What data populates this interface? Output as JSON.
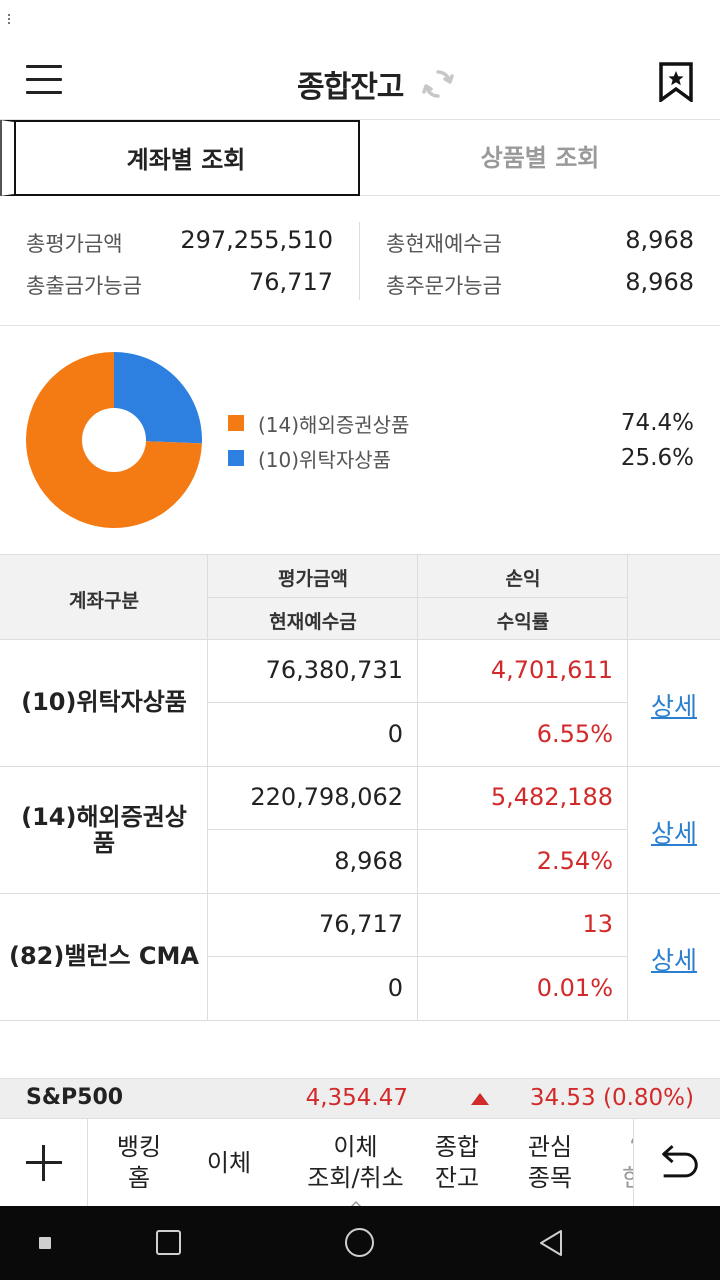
{
  "header": {
    "title": "종합잔고"
  },
  "tabs": [
    {
      "label": "계좌별 조회",
      "active": true
    },
    {
      "label": "상품별 조회",
      "active": false
    }
  ],
  "summary": {
    "total_eval_label": "총평가금액",
    "total_eval_value": "297,255,510",
    "withdrawable_label": "총출금가능금",
    "withdrawable_value": "76,717",
    "deposit_label": "총현재예수금",
    "deposit_value": "8,968",
    "orderable_label": "총주문가능금",
    "orderable_value": "8,968"
  },
  "chart_data": {
    "type": "pie",
    "categories": [
      "(14)해외증권상품",
      "(10)위탁자상품"
    ],
    "values": [
      74.4,
      25.6
    ],
    "labels": [
      "74.4%",
      "25.6%"
    ],
    "colors": [
      "#f47a14",
      "#2d7fe0"
    ],
    "legend_position": "right"
  },
  "table": {
    "headers": {
      "account": "계좌구분",
      "eval_amount": "평가금액",
      "current_deposit": "현재예수금",
      "profit": "손익",
      "return_rate": "수익률"
    },
    "rows": [
      {
        "account": "(10)위탁자상품",
        "eval_amount": "76,380,731",
        "current_deposit": "0",
        "profit": "4,701,611",
        "return_rate": "6.55%",
        "detail": "상세"
      },
      {
        "account_line1": "(14)해외증권상",
        "account_line2": "품",
        "eval_amount": "220,798,062",
        "current_deposit": "8,968",
        "profit": "5,482,188",
        "return_rate": "2.54%",
        "detail": "상세"
      },
      {
        "account": "(82)밸런스 CMA",
        "eval_amount": "76,717",
        "current_deposit": "0",
        "profit": "13",
        "return_rate": "0.01%",
        "detail": "상세"
      }
    ]
  },
  "ticker": {
    "name": "S&P500",
    "price": "4,354.47",
    "change": "34.53 (0.80%)",
    "direction": "up"
  },
  "bottom_nav": {
    "items": [
      {
        "line1": "뱅킹",
        "line2": "홈"
      },
      {
        "line1": "이체",
        "line2": ""
      },
      {
        "line1": "이체",
        "line2": "조회/취소"
      },
      {
        "line1": "종합",
        "line2": "잔고"
      },
      {
        "line1": "관심",
        "line2": "종목"
      },
      {
        "line1": "‘",
        "line2": "한"
      }
    ]
  },
  "colors": {
    "accent_red": "#d22a2a",
    "link_blue": "#2a7fd0",
    "orange": "#f47a14",
    "blue": "#2d7fe0"
  }
}
